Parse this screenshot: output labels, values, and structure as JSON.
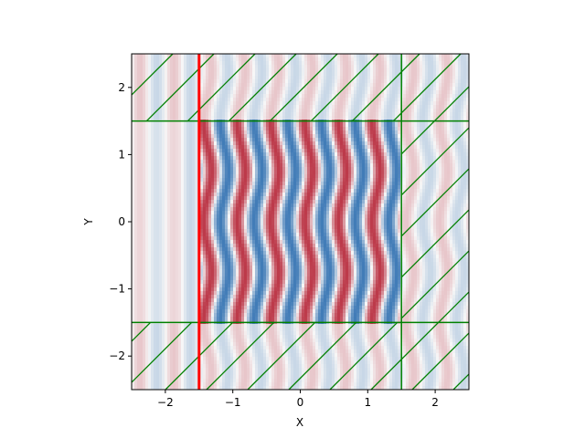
{
  "chart_data": {
    "type": "heatmap",
    "title": "",
    "xlabel": "X",
    "ylabel": "Y",
    "xlim": [
      -2.5,
      2.5
    ],
    "ylim": [
      -2.5,
      2.5
    ],
    "xticks": [
      -2,
      -1,
      0,
      1,
      2
    ],
    "yticks": [
      -2,
      -1,
      0,
      1,
      2
    ],
    "xtick_labels": [
      "−2",
      "−1",
      "0",
      "1",
      "2"
    ],
    "ytick_labels": [
      "−2",
      "−1",
      "0",
      "1",
      "2"
    ],
    "grid": false,
    "legend": "none",
    "colormap": "RdBu (diverging: red positive, blue negative, white zero)",
    "field": {
      "description": "wave field with vertical wavefronts propagating along +x",
      "wavelength": 0.5,
      "bright_region": {
        "x": [
          -1.5,
          1.5
        ],
        "y": [
          -1.5,
          1.5
        ]
      }
    },
    "source_line": {
      "x": -1.5,
      "color": "#ff0000"
    },
    "pml_boundary": {
      "x": [
        -2.5,
        1.5
      ],
      "y": [
        -1.5,
        1.5
      ],
      "color": "#008000"
    },
    "colors": {
      "positive": "#b2182b",
      "negative": "#2166ac",
      "pml": "#008000",
      "source": "#ff0000"
    }
  }
}
